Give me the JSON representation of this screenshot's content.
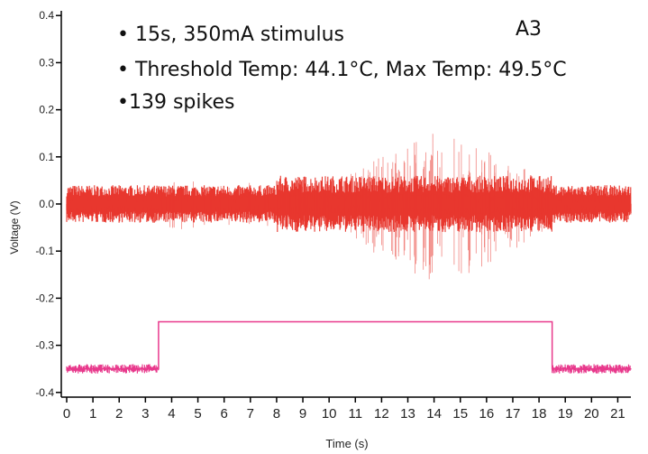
{
  "chart_data": {
    "type": "line",
    "panel_label": "A3",
    "xlabel": "Time (s)",
    "ylabel": "Voltage (V)",
    "xlim": [
      0,
      21.5
    ],
    "ylim": [
      -0.41,
      0.41
    ],
    "x_ticks": [
      0,
      1,
      2,
      3,
      4,
      5,
      6,
      7,
      8,
      9,
      10,
      11,
      12,
      13,
      14,
      15,
      16,
      17,
      18,
      19,
      20,
      21
    ],
    "y_ticks": [
      0.4,
      0.3,
      0.2,
      0.1,
      0.0,
      -0.1,
      -0.2,
      -0.3,
      -0.4
    ],
    "y_tick_labels": [
      "0.4",
      "0.3",
      "0.2",
      "0.1",
      "0.0",
      "-0.1",
      "-0.2",
      "-0.3",
      "-0.4"
    ],
    "annotations": [
      "• 15s, 350mA stimulus",
      "• Threshold Temp: 44.1°C, Max Temp: 49.5°C",
      "•139 spikes"
    ],
    "series": [
      {
        "kind": "noise-band",
        "color": "#e8372e",
        "baseline": 0.0,
        "band_halfwidth": 0.04,
        "band_halfwidth_active": 0.06,
        "active_range": [
          8.0,
          18.5
        ],
        "spike_max": 0.16,
        "spike_min": -0.18,
        "spike_count": 139
      },
      {
        "kind": "stimulus-step",
        "color": "#e8398c",
        "low_level": -0.35,
        "high_level": -0.25,
        "on_time": 3.5,
        "off_time": 18.5
      }
    ]
  }
}
